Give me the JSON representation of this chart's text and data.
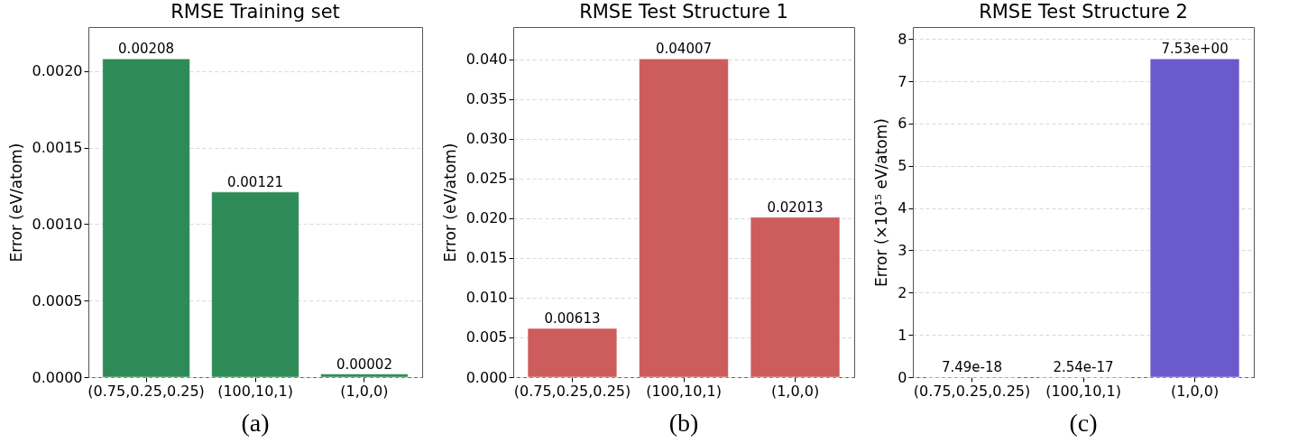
{
  "chart_data": [
    {
      "type": "bar",
      "title": "RMSE Training set",
      "ylabel": "Error (eV/atom)",
      "categories": [
        "(0.75,0.25,0.25)",
        "(100,10,1)",
        "(1,0,0)"
      ],
      "values": [
        0.00208,
        0.00121,
        2e-05
      ],
      "color": "#2e8b57",
      "value_labels": [
        "0.00208",
        "0.00121",
        "0.00002"
      ],
      "ylim": [
        0,
        0.002288
      ],
      "yticks": [
        {
          "value": 0,
          "label": "0.0000"
        },
        0.0005,
        {
          "value": 0.001,
          "label": "0.0010"
        },
        0.0015,
        {
          "value": 0.002,
          "label": "0.0020"
        }
      ],
      "grid": "y",
      "annotations": [
        "(a)"
      ]
    },
    {
      "type": "bar",
      "title": "RMSE Test Structure 1",
      "ylabel": "Error (eV/atom)",
      "categories": [
        "(0.75,0.25,0.25)",
        "(100,10,1)",
        "(1,0,0)"
      ],
      "values": [
        0.00613,
        0.04007,
        0.02013
      ],
      "color": "#cd5c5c",
      "value_labels": [
        "0.00613",
        "0.04007",
        "0.02013"
      ],
      "ylim": [
        0,
        0.04408
      ],
      "yticks": [
        {
          "value": 0,
          "label": "0.000"
        },
        0.005,
        {
          "value": 0.01,
          "label": "0.010"
        },
        0.015,
        {
          "value": 0.02,
          "label": "0.020"
        },
        0.025,
        {
          "value": 0.03,
          "label": "0.030"
        },
        0.035,
        {
          "value": 0.04,
          "label": "0.040"
        }
      ],
      "grid": "y",
      "annotations": [
        "(b)"
      ]
    },
    {
      "type": "bar",
      "title": "RMSE Test Structure 2",
      "ylabel": "Error (×10¹⁵ eV/atom)",
      "categories": [
        "(0.75,0.25,0.25)",
        "(100,10,1)",
        "(1,0,0)"
      ],
      "values": [
        7.49e-18,
        2.54e-17,
        7.53
      ],
      "color": "#6a5acd",
      "value_labels": [
        "7.49e-18",
        "2.54e-17",
        "7.53e+00"
      ],
      "ylim": [
        0,
        8.283
      ],
      "yticks": [
        0,
        1,
        2,
        3,
        4,
        5,
        6,
        7,
        8
      ],
      "grid": "y",
      "annotations": [
        "(c)"
      ]
    }
  ]
}
